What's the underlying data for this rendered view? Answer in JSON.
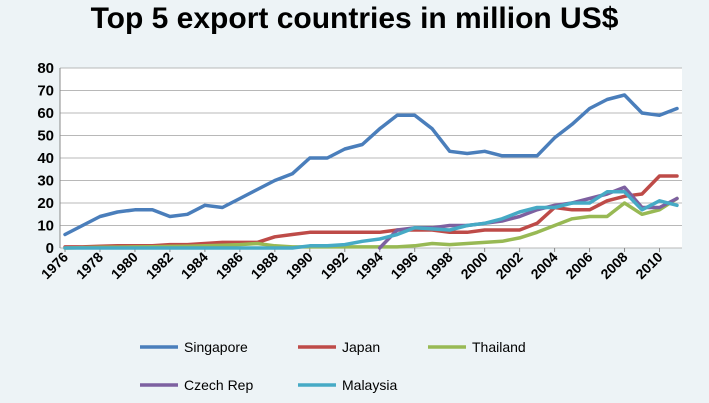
{
  "chart_data": {
    "type": "line",
    "title": "Top 5 export countries in million US$",
    "xlabel": "",
    "ylabel": "",
    "xlim": [
      1976,
      2011
    ],
    "ylim": [
      0,
      80
    ],
    "y_ticks": [
      "0",
      "10",
      "20",
      "30",
      "40",
      "50",
      "60",
      "70",
      "80"
    ],
    "x_ticks": [
      "1976",
      "1978",
      "1980",
      "1982",
      "1984",
      "1986",
      "1988",
      "1990",
      "1992",
      "1994",
      "1996",
      "1998",
      "2000",
      "2002",
      "2004",
      "2006",
      "2008",
      "2010"
    ],
    "grid": "horizontal",
    "legend_position": "bottom",
    "x": [
      1976,
      1977,
      1978,
      1979,
      1980,
      1981,
      1982,
      1983,
      1984,
      1985,
      1986,
      1987,
      1988,
      1989,
      1990,
      1991,
      1992,
      1993,
      1994,
      1995,
      1996,
      1997,
      1998,
      1999,
      2000,
      2001,
      2002,
      2003,
      2004,
      2005,
      2006,
      2007,
      2008,
      2009,
      2010,
      2011
    ],
    "series": [
      {
        "name": "Singapore",
        "color": "#4a7ebb",
        "values": [
          6,
          10,
          14,
          16,
          17,
          17,
          14,
          15,
          19,
          18,
          22,
          26,
          30,
          33,
          40,
          40,
          44,
          46,
          53,
          59,
          59,
          53,
          43,
          42,
          43,
          41,
          41,
          41,
          49,
          55,
          62,
          66,
          68,
          60,
          59,
          62
        ]
      },
      {
        "name": "Japan",
        "color": "#be4b48",
        "values": [
          0.5,
          0.5,
          0.8,
          1,
          1,
          1,
          1.5,
          1.5,
          2,
          2.5,
          2.5,
          2.5,
          5,
          6,
          7,
          7,
          7,
          7,
          7,
          8,
          8,
          8,
          7,
          7,
          8,
          8,
          8,
          11,
          18,
          17,
          17,
          21,
          23,
          24,
          32,
          32
        ]
      },
      {
        "name": "Thailand",
        "color": "#98b954",
        "values": [
          0,
          0.2,
          0.3,
          0.4,
          0.5,
          0.6,
          0.7,
          0.8,
          1,
          1.2,
          1.5,
          2,
          1,
          0.5,
          0.5,
          0.5,
          0.5,
          0.5,
          0.5,
          0.5,
          1,
          2,
          1.5,
          2,
          2.5,
          3,
          4.5,
          7,
          10,
          13,
          14,
          14,
          20,
          15,
          17,
          22
        ]
      },
      {
        "name": "Czech Rep",
        "color": "#7d60a0",
        "values": [
          null,
          null,
          null,
          null,
          null,
          null,
          null,
          null,
          null,
          null,
          null,
          null,
          null,
          null,
          null,
          null,
          null,
          null,
          0,
          8,
          9,
          9,
          10,
          10,
          11,
          12,
          14,
          17,
          19,
          20,
          22,
          24,
          27,
          18,
          18,
          22
        ]
      },
      {
        "name": "Malaysia",
        "color": "#46aac5",
        "values": [
          0,
          0,
          0,
          0,
          0,
          0,
          0,
          0,
          0,
          0,
          0,
          0,
          0,
          0,
          1,
          1,
          1.5,
          3,
          4,
          6,
          9,
          8.5,
          8,
          10,
          11,
          13,
          16,
          18,
          18,
          20,
          20,
          25,
          25,
          17,
          21,
          19
        ]
      }
    ]
  }
}
